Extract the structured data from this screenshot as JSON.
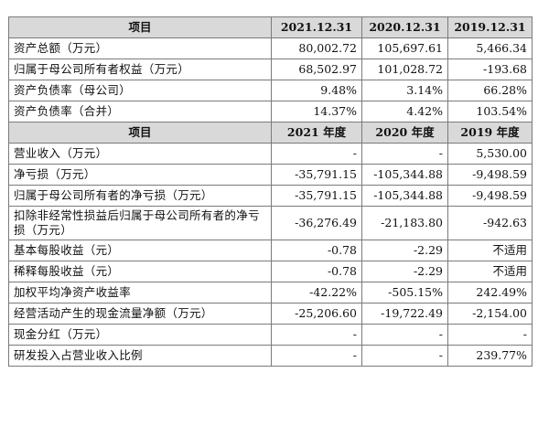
{
  "table": {
    "header1": [
      "项目",
      "2021.12.31",
      "2020.12.31",
      "2019.12.31"
    ],
    "balance_rows": [
      {
        "label": "资产总额（万元）",
        "v2021": "80,002.72",
        "v2020": "105,697.61",
        "v2019": "5,466.34"
      },
      {
        "label": "归属于母公司所有者权益（万元）",
        "v2021": "68,502.97",
        "v2020": "101,028.72",
        "v2019": "-193.68"
      },
      {
        "label": "资产负债率（母公司）",
        "v2021": "9.48%",
        "v2020": "3.14%",
        "v2019": "66.28%"
      },
      {
        "label": "资产负债率（合并）",
        "v2021": "14.37%",
        "v2020": "4.42%",
        "v2019": "103.54%"
      }
    ],
    "header2": [
      "项目",
      "2021 年度",
      "2020 年度",
      "2019 年度"
    ],
    "income_rows": [
      {
        "label": "营业收入（万元）",
        "v2021": "-",
        "v2020": "-",
        "v2019": "5,530.00"
      },
      {
        "label": "净亏损（万元）",
        "v2021": "-35,791.15",
        "v2020": "-105,344.88",
        "v2019": "-9,498.59"
      },
      {
        "label": "归属于母公司所有者的净亏损（万元）",
        "v2021": "-35,791.15",
        "v2020": "-105,344.88",
        "v2019": "-9,498.59"
      },
      {
        "label": "扣除非经常性损益后归属于母公司所有者的净亏损（万元）",
        "v2021": "-36,276.49",
        "v2020": "-21,183.80",
        "v2019": "-942.63"
      },
      {
        "label": "基本每股收益（元）",
        "v2021": "-0.78",
        "v2020": "-2.29",
        "v2019": "不适用"
      },
      {
        "label": "稀释每股收益（元）",
        "v2021": "-0.78",
        "v2020": "-2.29",
        "v2019": "不适用"
      },
      {
        "label": "加权平均净资产收益率",
        "v2021": "-42.22%",
        "v2020": "-505.15%",
        "v2019": "242.49%"
      },
      {
        "label": "经营活动产生的现金流量净额（万元）",
        "v2021": "-25,206.60",
        "v2020": "-19,722.49",
        "v2019": "-2,154.00"
      },
      {
        "label": "现金分红（万元）",
        "v2021": "-",
        "v2020": "-",
        "v2019": "-"
      },
      {
        "label": "研发投入占营业收入比例",
        "v2021": "-",
        "v2020": "-",
        "v2019": "239.77%"
      }
    ]
  }
}
